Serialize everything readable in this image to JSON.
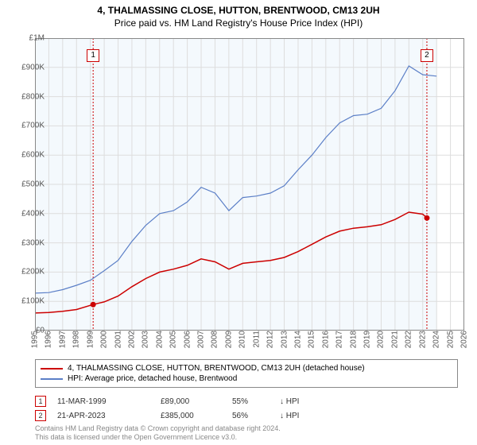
{
  "title": {
    "main": "4, THALMASSING CLOSE, HUTTON, BRENTWOOD, CM13 2UH",
    "sub": "Price paid vs. HM Land Registry's House Price Index (HPI)"
  },
  "chart": {
    "type": "line",
    "background_color": "#ffffff",
    "plot_bg_color": "#f4f9fd",
    "grid_color": "#dddddd",
    "axis_color": "#888888",
    "x_range": [
      1995,
      2026
    ],
    "y_range": [
      0,
      1000000
    ],
    "y_ticks": [
      0,
      100000,
      200000,
      300000,
      400000,
      500000,
      600000,
      700000,
      800000,
      900000,
      1000000
    ],
    "y_tick_labels": [
      "£0",
      "£100K",
      "£200K",
      "£300K",
      "£400K",
      "£500K",
      "£600K",
      "£700K",
      "£800K",
      "£900K",
      "£1M"
    ],
    "x_ticks": [
      1995,
      1996,
      1997,
      1998,
      1999,
      2000,
      2001,
      2002,
      2003,
      2004,
      2005,
      2006,
      2007,
      2008,
      2009,
      2010,
      2011,
      2012,
      2013,
      2014,
      2015,
      2016,
      2017,
      2018,
      2019,
      2020,
      2021,
      2022,
      2023,
      2024,
      2025,
      2026
    ],
    "plot_xlim": [
      1995,
      2024
    ],
    "series": [
      {
        "id": "price_paid",
        "label": "4, THALMASSING CLOSE, HUTTON, BRENTWOOD, CM13 2UH (detached house)",
        "color": "#cc0000",
        "line_width": 1.5,
        "data": [
          [
            1995,
            60000
          ],
          [
            1996,
            62000
          ],
          [
            1997,
            66000
          ],
          [
            1998,
            72000
          ],
          [
            1999.2,
            89000
          ],
          [
            2000,
            98000
          ],
          [
            2001,
            118000
          ],
          [
            2002,
            150000
          ],
          [
            2003,
            178000
          ],
          [
            2004,
            200000
          ],
          [
            2005,
            210000
          ],
          [
            2006,
            223000
          ],
          [
            2007,
            245000
          ],
          [
            2008,
            235000
          ],
          [
            2009,
            210000
          ],
          [
            2010,
            230000
          ],
          [
            2011,
            235000
          ],
          [
            2012,
            240000
          ],
          [
            2013,
            250000
          ],
          [
            2014,
            270000
          ],
          [
            2015,
            295000
          ],
          [
            2016,
            320000
          ],
          [
            2017,
            340000
          ],
          [
            2018,
            350000
          ],
          [
            2019,
            355000
          ],
          [
            2020,
            362000
          ],
          [
            2021,
            380000
          ],
          [
            2022,
            405000
          ],
          [
            2023,
            398000
          ],
          [
            2023.3,
            385000
          ]
        ]
      },
      {
        "id": "hpi",
        "label": "HPI: Average price, detached house, Brentwood",
        "color": "#5b7fc7",
        "line_width": 1.2,
        "data": [
          [
            1995,
            128000
          ],
          [
            1996,
            130000
          ],
          [
            1997,
            140000
          ],
          [
            1998,
            155000
          ],
          [
            1999,
            172000
          ],
          [
            2000,
            205000
          ],
          [
            2001,
            240000
          ],
          [
            2002,
            305000
          ],
          [
            2003,
            360000
          ],
          [
            2004,
            400000
          ],
          [
            2005,
            410000
          ],
          [
            2006,
            440000
          ],
          [
            2007,
            490000
          ],
          [
            2008,
            470000
          ],
          [
            2009,
            410000
          ],
          [
            2010,
            455000
          ],
          [
            2011,
            460000
          ],
          [
            2012,
            470000
          ],
          [
            2013,
            495000
          ],
          [
            2014,
            550000
          ],
          [
            2015,
            600000
          ],
          [
            2016,
            660000
          ],
          [
            2017,
            710000
          ],
          [
            2018,
            735000
          ],
          [
            2019,
            740000
          ],
          [
            2020,
            760000
          ],
          [
            2021,
            820000
          ],
          [
            2022,
            905000
          ],
          [
            2023,
            875000
          ],
          [
            2024,
            870000
          ]
        ]
      }
    ],
    "markers": [
      {
        "n": "1",
        "x": 1999.2,
        "y": 89000,
        "color": "#cc0000"
      },
      {
        "n": "2",
        "x": 2023.3,
        "y": 385000,
        "color": "#cc0000"
      }
    ],
    "marker_box_top_y": 62
  },
  "legend": {
    "items": [
      {
        "color": "#cc0000",
        "label": "4, THALMASSING CLOSE, HUTTON, BRENTWOOD, CM13 2UH (detached house)"
      },
      {
        "color": "#5b7fc7",
        "label": "HPI: Average price, detached house, Brentwood"
      }
    ]
  },
  "transactions": [
    {
      "n": "1",
      "color": "#cc0000",
      "date": "11-MAR-1999",
      "price": "£89,000",
      "pct": "55%",
      "vs": "↓ HPI"
    },
    {
      "n": "2",
      "color": "#cc0000",
      "date": "21-APR-2023",
      "price": "£385,000",
      "pct": "56%",
      "vs": "↓ HPI"
    }
  ],
  "footer": {
    "line1": "Contains HM Land Registry data © Crown copyright and database right 2024.",
    "line2": "This data is licensed under the Open Government Licence v3.0."
  }
}
